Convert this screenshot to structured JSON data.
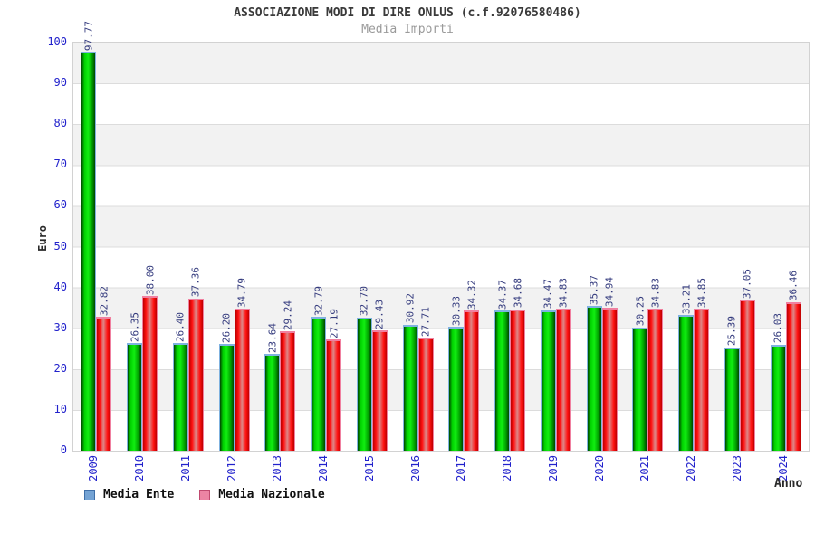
{
  "title": "ASSOCIAZIONE MODI DI DIRE ONLUS (c.f.92076580486)",
  "subtitle": "Media Importi",
  "chart_data": {
    "type": "bar",
    "categories": [
      "2009",
      "2010",
      "2011",
      "2012",
      "2013",
      "2014",
      "2015",
      "2016",
      "2017",
      "2018",
      "2019",
      "2020",
      "2021",
      "2022",
      "2023",
      "2024"
    ],
    "series": [
      {
        "name": "Media Ente",
        "values": [
          97.77,
          26.35,
          26.4,
          26.2,
          23.64,
          32.79,
          32.7,
          30.92,
          30.33,
          34.37,
          34.47,
          35.37,
          30.25,
          33.21,
          25.39,
          26.03
        ],
        "bar_border": "#7fb2e0",
        "bar_gradient": [
          "#004400",
          "#00d000",
          "#11ee11",
          "#00a000",
          "#004400"
        ],
        "legend_fill": "#74a3d4",
        "legend_border": "#3f6fa8"
      },
      {
        "name": "Media Nazionale",
        "values": [
          32.82,
          38.0,
          37.36,
          34.79,
          29.24,
          27.19,
          29.43,
          27.71,
          34.32,
          34.68,
          34.83,
          34.94,
          34.83,
          34.85,
          37.05,
          36.46
        ],
        "bar_border": "#f080a0",
        "bar_gradient": [
          "#bb0000",
          "#ff1111",
          "#dd8888",
          "#ff1111",
          "#bb0000"
        ],
        "legend_fill": "#ec84a4",
        "legend_border": "#c04a70"
      }
    ],
    "title": "ASSOCIAZIONE MODI DI DIRE ONLUS (c.f.92076580486)",
    "subtitle": "Media Importi",
    "xlabel": "Anno",
    "ylabel": "Euro",
    "ylim": [
      0,
      100
    ],
    "yticks": [
      0,
      10,
      20,
      30,
      40,
      50,
      60,
      70,
      80,
      90,
      100
    ],
    "grid": "horizontal lines every 10, alternating gray/white bands",
    "legend_position": "bottom-left",
    "value_labels": "rotated 90deg above each bar, two decimals"
  },
  "legend": {
    "items": [
      {
        "label": "Media Ente"
      },
      {
        "label": "Media Nazionale"
      }
    ]
  },
  "colors": {
    "axis_text": "#2222cc",
    "value_label_text": "#333a7d",
    "band_gray": "#f2f2f2",
    "grid_line": "#dcdcdc",
    "title_text": "#3a3a3a",
    "subtitle_text": "#9a9a9a"
  }
}
